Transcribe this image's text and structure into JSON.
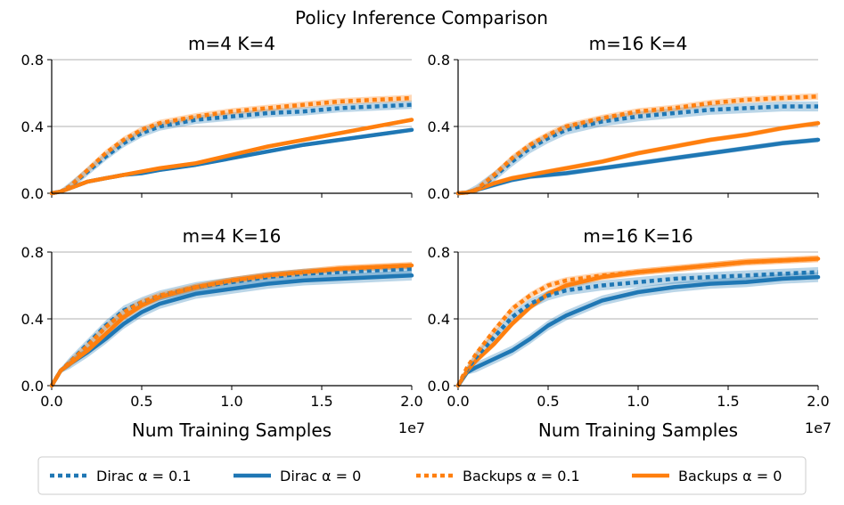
{
  "chart_data": {
    "type": "line",
    "title": "Policy Inference Comparison",
    "xlabel": "Num Training Samples",
    "x_exponent_label": "1e7",
    "xlim": [
      0,
      2.0
    ],
    "ylim": [
      0,
      0.8
    ],
    "x_ticks": [
      "0.0",
      "0.5",
      "1.0",
      "1.5",
      "2.0"
    ],
    "y_ticks": [
      "0.0",
      "0.4",
      "0.8"
    ],
    "legend": [
      {
        "label": "Dirac α = 0.1",
        "color": "#1f77b4",
        "style": "dotted"
      },
      {
        "label": "Dirac α = 0",
        "color": "#1f77b4",
        "style": "solid"
      },
      {
        "label": "Backups α = 0.1",
        "color": "#ff7f0e",
        "style": "dotted"
      },
      {
        "label": "Backups α = 0",
        "color": "#ff7f0e",
        "style": "solid"
      }
    ],
    "x": [
      0,
      0.05,
      0.1,
      0.2,
      0.3,
      0.4,
      0.5,
      0.6,
      0.8,
      1.0,
      1.2,
      1.4,
      1.6,
      1.8,
      2.0
    ],
    "panels": [
      {
        "title": "m=4 K=4",
        "series": [
          {
            "name": "Dirac α = 0.1",
            "values": [
              0,
              0.01,
              0.04,
              0.13,
              0.22,
              0.3,
              0.36,
              0.4,
              0.44,
              0.46,
              0.48,
              0.49,
              0.51,
              0.52,
              0.53
            ],
            "band": 0.025
          },
          {
            "name": "Dirac α = 0",
            "values": [
              0,
              0.01,
              0.03,
              0.07,
              0.09,
              0.11,
              0.12,
              0.14,
              0.17,
              0.21,
              0.25,
              0.29,
              0.32,
              0.35,
              0.38
            ],
            "band": 0.012
          },
          {
            "name": "Backups α = 0.1",
            "values": [
              0,
              0.01,
              0.04,
              0.14,
              0.24,
              0.32,
              0.38,
              0.42,
              0.46,
              0.49,
              0.51,
              0.53,
              0.55,
              0.56,
              0.57
            ],
            "band": 0.02
          },
          {
            "name": "Backups α = 0",
            "values": [
              0,
              0.01,
              0.03,
              0.07,
              0.09,
              0.11,
              0.13,
              0.15,
              0.18,
              0.23,
              0.28,
              0.32,
              0.36,
              0.4,
              0.44
            ],
            "band": 0.012
          }
        ]
      },
      {
        "title": "m=16 K=4",
        "series": [
          {
            "name": "Dirac α = 0.1",
            "values": [
              0,
              0.005,
              0.02,
              0.1,
              0.19,
              0.27,
              0.33,
              0.38,
              0.43,
              0.46,
              0.48,
              0.5,
              0.51,
              0.52,
              0.52
            ],
            "band": 0.03
          },
          {
            "name": "Dirac α = 0",
            "values": [
              0,
              0.005,
              0.02,
              0.05,
              0.08,
              0.1,
              0.11,
              0.12,
              0.15,
              0.18,
              0.21,
              0.24,
              0.27,
              0.3,
              0.32
            ],
            "band": 0.015
          },
          {
            "name": "Backups α = 0.1",
            "values": [
              0,
              0.005,
              0.02,
              0.11,
              0.21,
              0.29,
              0.35,
              0.4,
              0.45,
              0.49,
              0.51,
              0.54,
              0.56,
              0.57,
              0.58
            ],
            "band": 0.02
          },
          {
            "name": "Backups α = 0",
            "values": [
              0,
              0.005,
              0.02,
              0.06,
              0.09,
              0.11,
              0.13,
              0.15,
              0.19,
              0.24,
              0.28,
              0.32,
              0.35,
              0.39,
              0.42
            ],
            "band": 0.015
          }
        ]
      },
      {
        "title": "m=4 K=16",
        "series": [
          {
            "name": "Dirac α = 0.1",
            "values": [
              0,
              0.09,
              0.14,
              0.25,
              0.36,
              0.45,
              0.5,
              0.54,
              0.59,
              0.62,
              0.65,
              0.67,
              0.68,
              0.69,
              0.7
            ],
            "band": 0.03
          },
          {
            "name": "Dirac α = 0",
            "values": [
              0,
              0.09,
              0.13,
              0.2,
              0.28,
              0.37,
              0.44,
              0.49,
              0.55,
              0.58,
              0.61,
              0.63,
              0.64,
              0.65,
              0.66
            ],
            "band": 0.03
          },
          {
            "name": "Backups α = 0.1",
            "values": [
              0,
              0.09,
              0.14,
              0.24,
              0.35,
              0.44,
              0.5,
              0.54,
              0.59,
              0.63,
              0.66,
              0.68,
              0.7,
              0.71,
              0.72
            ],
            "band": 0.02
          },
          {
            "name": "Backups α = 0",
            "values": [
              0,
              0.09,
              0.13,
              0.21,
              0.31,
              0.41,
              0.48,
              0.53,
              0.59,
              0.63,
              0.66,
              0.68,
              0.7,
              0.71,
              0.72
            ],
            "band": 0.02
          }
        ]
      },
      {
        "title": "m=16 K=16",
        "series": [
          {
            "name": "Dirac α = 0.1",
            "values": [
              0,
              0.1,
              0.17,
              0.29,
              0.41,
              0.49,
              0.54,
              0.57,
              0.6,
              0.62,
              0.64,
              0.65,
              0.66,
              0.67,
              0.68
            ],
            "band": 0.03
          },
          {
            "name": "Dirac α = 0",
            "values": [
              0,
              0.08,
              0.11,
              0.16,
              0.21,
              0.28,
              0.36,
              0.42,
              0.51,
              0.56,
              0.59,
              0.61,
              0.62,
              0.64,
              0.65
            ],
            "band": 0.03
          },
          {
            "name": "Backups α = 0.1",
            "values": [
              0,
              0.11,
              0.19,
              0.33,
              0.46,
              0.54,
              0.6,
              0.63,
              0.66,
              0.68,
              0.7,
              0.72,
              0.74,
              0.75,
              0.76
            ],
            "band": 0.02
          },
          {
            "name": "Backups α = 0",
            "values": [
              0,
              0.09,
              0.15,
              0.25,
              0.37,
              0.47,
              0.55,
              0.6,
              0.65,
              0.68,
              0.7,
              0.72,
              0.74,
              0.75,
              0.76
            ],
            "band": 0.02
          }
        ]
      }
    ]
  }
}
